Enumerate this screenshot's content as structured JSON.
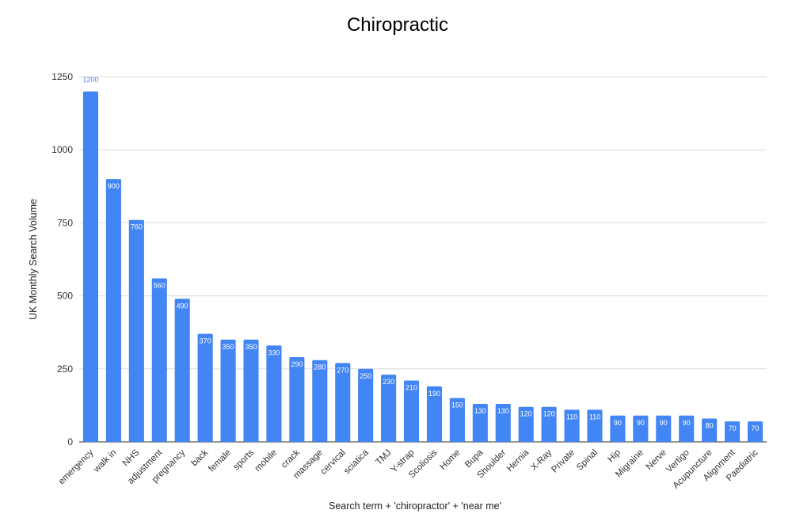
{
  "chart_data": {
    "type": "bar",
    "title": "Chiropractic",
    "xlabel": "Search term + 'chiropractor' + 'near me'",
    "ylabel": "UK Monthly Search Volume",
    "ylim": [
      0,
      1250
    ],
    "yticks": [
      0,
      250,
      500,
      750,
      1000,
      1250
    ],
    "grid": true,
    "bar_color": "#4285f4",
    "grid_color": "#dcdcdc",
    "categories": [
      "emergency",
      "walk in",
      "NHS",
      "adjustment",
      "pregnancy",
      "back",
      "female",
      "sports",
      "mobile",
      "crack",
      "massage",
      "cervical",
      "sciatica",
      "TMJ",
      "Y-strap",
      "Scoliosis",
      "Home",
      "Bupa",
      "Shoulder",
      "Hernia",
      "X-Ray",
      "Private",
      "Spinal",
      "Hip",
      "Migraine",
      "Nerve",
      "Vertigo",
      "Acupuncture",
      "Alignment",
      "Paediatric"
    ],
    "values": [
      1200,
      900,
      760,
      560,
      490,
      370,
      350,
      350,
      330,
      290,
      280,
      270,
      250,
      230,
      210,
      190,
      150,
      130,
      130,
      120,
      120,
      110,
      110,
      90,
      90,
      90,
      90,
      80,
      70,
      70
    ]
  }
}
